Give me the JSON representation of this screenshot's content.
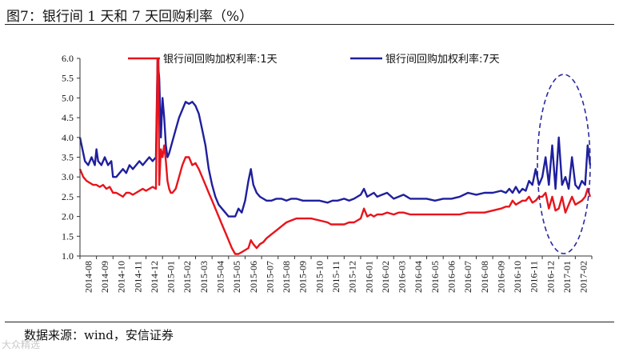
{
  "figure": {
    "title": "图7：银行间 1 天和 7 天回购利率（%）",
    "source": "数据来源：wind，安信证券",
    "watermark": "大众精选"
  },
  "chart_data": {
    "type": "line",
    "xlabel": "",
    "ylabel": "",
    "ylim": [
      1.0,
      6.0
    ],
    "yticks": [
      "6.0",
      "5.5",
      "5.0",
      "4.5",
      "4.0",
      "3.5",
      "3.0",
      "2.5",
      "2.0",
      "1.5",
      "1.0"
    ],
    "categories": [
      "2014-08",
      "2014-09",
      "2014-10",
      "2014-11",
      "2014-12",
      "2015-01",
      "2015-02",
      "2015-03",
      "2015-04",
      "2015-05",
      "2015-06",
      "2015-07",
      "2015-08",
      "2015-09",
      "2015-10",
      "2015-11",
      "2015-12",
      "2016-01",
      "2016-02",
      "2016-03",
      "2016-04",
      "2016-05",
      "2016-06",
      "2016-07",
      "2016-08",
      "2016-09",
      "2016-10",
      "2016-11",
      "2016-12",
      "2017-01",
      "2017-02"
    ],
    "legend_position": "top",
    "colors": {
      "series_1d": "#e8141c",
      "series_7d": "#1f1f9e",
      "ellipse": "#2a2aa0",
      "axis": "#333333"
    },
    "series": [
      {
        "name": "银行间回购加权利率:1天",
        "points": [
          [
            0.0,
            3.2
          ],
          [
            0.2,
            3.0
          ],
          [
            0.4,
            2.9
          ],
          [
            0.6,
            2.85
          ],
          [
            0.8,
            2.8
          ],
          [
            1.0,
            2.8
          ],
          [
            1.2,
            2.75
          ],
          [
            1.4,
            2.8
          ],
          [
            1.6,
            2.7
          ],
          [
            1.8,
            2.75
          ],
          [
            2.0,
            2.6
          ],
          [
            2.2,
            2.6
          ],
          [
            2.4,
            2.55
          ],
          [
            2.6,
            2.5
          ],
          [
            2.8,
            2.6
          ],
          [
            3.0,
            2.6
          ],
          [
            3.2,
            2.55
          ],
          [
            3.4,
            2.6
          ],
          [
            3.6,
            2.65
          ],
          [
            3.8,
            2.7
          ],
          [
            4.0,
            2.65
          ],
          [
            4.2,
            2.7
          ],
          [
            4.4,
            2.75
          ],
          [
            4.6,
            2.7
          ],
          [
            4.7,
            5.98
          ],
          [
            4.75,
            5.98
          ],
          [
            4.8,
            2.8
          ],
          [
            4.9,
            3.7
          ],
          [
            5.0,
            3.5
          ],
          [
            5.1,
            3.8
          ],
          [
            5.2,
            3.4
          ],
          [
            5.3,
            2.9
          ],
          [
            5.4,
            2.7
          ],
          [
            5.5,
            2.6
          ],
          [
            5.6,
            2.6
          ],
          [
            5.8,
            2.7
          ],
          [
            6.0,
            3.0
          ],
          [
            6.2,
            3.3
          ],
          [
            6.4,
            3.5
          ],
          [
            6.6,
            3.5
          ],
          [
            6.8,
            3.3
          ],
          [
            7.0,
            3.35
          ],
          [
            7.2,
            3.2
          ],
          [
            7.4,
            3.0
          ],
          [
            7.6,
            2.8
          ],
          [
            7.8,
            2.6
          ],
          [
            8.0,
            2.4
          ],
          [
            8.2,
            2.2
          ],
          [
            8.4,
            2.0
          ],
          [
            8.6,
            1.8
          ],
          [
            8.8,
            1.6
          ],
          [
            9.0,
            1.4
          ],
          [
            9.2,
            1.2
          ],
          [
            9.4,
            1.05
          ],
          [
            9.6,
            1.05
          ],
          [
            9.8,
            1.1
          ],
          [
            10.0,
            1.15
          ],
          [
            10.2,
            1.2
          ],
          [
            10.35,
            1.4
          ],
          [
            10.5,
            1.3
          ],
          [
            10.7,
            1.2
          ],
          [
            10.9,
            1.3
          ],
          [
            11.1,
            1.35
          ],
          [
            11.3,
            1.45
          ],
          [
            11.6,
            1.55
          ],
          [
            11.9,
            1.65
          ],
          [
            12.2,
            1.75
          ],
          [
            12.5,
            1.85
          ],
          [
            12.8,
            1.9
          ],
          [
            13.1,
            1.95
          ],
          [
            13.5,
            1.95
          ],
          [
            14.0,
            1.95
          ],
          [
            14.5,
            1.9
          ],
          [
            15.0,
            1.85
          ],
          [
            15.2,
            1.8
          ],
          [
            15.5,
            1.8
          ],
          [
            16.0,
            1.8
          ],
          [
            16.3,
            1.85
          ],
          [
            16.6,
            1.85
          ],
          [
            17.0,
            1.95
          ],
          [
            17.2,
            2.2
          ],
          [
            17.4,
            2.0
          ],
          [
            17.6,
            2.05
          ],
          [
            17.8,
            2.0
          ],
          [
            18.0,
            2.05
          ],
          [
            18.3,
            2.05
          ],
          [
            18.6,
            2.1
          ],
          [
            19.0,
            2.05
          ],
          [
            19.3,
            2.1
          ],
          [
            19.6,
            2.1
          ],
          [
            20.0,
            2.05
          ],
          [
            20.5,
            2.05
          ],
          [
            21.0,
            2.05
          ],
          [
            21.5,
            2.05
          ],
          [
            22.0,
            2.05
          ],
          [
            22.5,
            2.05
          ],
          [
            23.0,
            2.05
          ],
          [
            23.5,
            2.1
          ],
          [
            24.0,
            2.1
          ],
          [
            24.5,
            2.1
          ],
          [
            25.0,
            2.15
          ],
          [
            25.5,
            2.2
          ],
          [
            25.8,
            2.25
          ],
          [
            26.0,
            2.25
          ],
          [
            26.2,
            2.4
          ],
          [
            26.4,
            2.3
          ],
          [
            26.6,
            2.35
          ],
          [
            26.8,
            2.4
          ],
          [
            27.0,
            2.4
          ],
          [
            27.2,
            2.5
          ],
          [
            27.4,
            2.35
          ],
          [
            27.6,
            2.4
          ],
          [
            27.8,
            2.5
          ],
          [
            28.0,
            2.5
          ],
          [
            28.2,
            2.6
          ],
          [
            28.4,
            2.2
          ],
          [
            28.6,
            2.5
          ],
          [
            28.8,
            2.15
          ],
          [
            29.0,
            2.2
          ],
          [
            29.2,
            2.5
          ],
          [
            29.4,
            2.1
          ],
          [
            29.6,
            2.3
          ],
          [
            29.8,
            2.5
          ],
          [
            30.0,
            2.3
          ],
          [
            30.2,
            2.35
          ],
          [
            30.4,
            2.4
          ],
          [
            30.6,
            2.5
          ],
          [
            30.75,
            2.7
          ],
          [
            30.9,
            2.5
          ]
        ]
      },
      {
        "name": "银行间回购加权利率:7天",
        "points": [
          [
            0.0,
            4.0
          ],
          [
            0.15,
            3.7
          ],
          [
            0.3,
            3.4
          ],
          [
            0.5,
            3.3
          ],
          [
            0.7,
            3.5
          ],
          [
            0.9,
            3.3
          ],
          [
            1.0,
            3.7
          ],
          [
            1.1,
            3.4
          ],
          [
            1.3,
            3.3
          ],
          [
            1.5,
            3.5
          ],
          [
            1.7,
            3.3
          ],
          [
            1.9,
            3.4
          ],
          [
            2.0,
            3.0
          ],
          [
            2.2,
            3.0
          ],
          [
            2.4,
            3.1
          ],
          [
            2.6,
            3.2
          ],
          [
            2.8,
            3.1
          ],
          [
            3.0,
            3.3
          ],
          [
            3.2,
            3.2
          ],
          [
            3.4,
            3.3
          ],
          [
            3.6,
            3.4
          ],
          [
            3.8,
            3.3
          ],
          [
            4.0,
            3.4
          ],
          [
            4.2,
            3.5
          ],
          [
            4.4,
            3.4
          ],
          [
            4.6,
            3.5
          ],
          [
            4.7,
            6.0
          ],
          [
            4.8,
            5.5
          ],
          [
            4.9,
            4.0
          ],
          [
            5.0,
            5.0
          ],
          [
            5.1,
            4.5
          ],
          [
            5.2,
            3.8
          ],
          [
            5.3,
            3.5
          ],
          [
            5.4,
            3.6
          ],
          [
            5.6,
            3.9
          ],
          [
            5.8,
            4.2
          ],
          [
            6.0,
            4.5
          ],
          [
            6.2,
            4.7
          ],
          [
            6.4,
            4.9
          ],
          [
            6.6,
            4.85
          ],
          [
            6.8,
            4.9
          ],
          [
            7.0,
            4.8
          ],
          [
            7.2,
            4.6
          ],
          [
            7.4,
            4.2
          ],
          [
            7.6,
            3.8
          ],
          [
            7.8,
            3.2
          ],
          [
            8.0,
            2.8
          ],
          [
            8.2,
            2.5
          ],
          [
            8.4,
            2.3
          ],
          [
            8.6,
            2.2
          ],
          [
            8.8,
            2.1
          ],
          [
            9.0,
            2.0
          ],
          [
            9.2,
            2.0
          ],
          [
            9.4,
            2.0
          ],
          [
            9.6,
            2.2
          ],
          [
            9.8,
            2.1
          ],
          [
            10.0,
            2.4
          ],
          [
            10.2,
            2.9
          ],
          [
            10.35,
            3.2
          ],
          [
            10.5,
            2.8
          ],
          [
            10.7,
            2.6
          ],
          [
            10.9,
            2.5
          ],
          [
            11.1,
            2.45
          ],
          [
            11.3,
            2.4
          ],
          [
            11.6,
            2.4
          ],
          [
            11.9,
            2.45
          ],
          [
            12.2,
            2.45
          ],
          [
            12.5,
            2.4
          ],
          [
            12.8,
            2.45
          ],
          [
            13.1,
            2.45
          ],
          [
            13.5,
            2.4
          ],
          [
            14.0,
            2.4
          ],
          [
            14.5,
            2.4
          ],
          [
            15.0,
            2.35
          ],
          [
            15.3,
            2.4
          ],
          [
            15.6,
            2.4
          ],
          [
            16.0,
            2.45
          ],
          [
            16.3,
            2.4
          ],
          [
            16.6,
            2.45
          ],
          [
            17.0,
            2.55
          ],
          [
            17.2,
            2.7
          ],
          [
            17.4,
            2.5
          ],
          [
            17.6,
            2.55
          ],
          [
            17.8,
            2.6
          ],
          [
            18.0,
            2.5
          ],
          [
            18.3,
            2.55
          ],
          [
            18.6,
            2.6
          ],
          [
            19.0,
            2.45
          ],
          [
            19.3,
            2.5
          ],
          [
            19.6,
            2.55
          ],
          [
            20.0,
            2.45
          ],
          [
            20.5,
            2.45
          ],
          [
            21.0,
            2.45
          ],
          [
            21.5,
            2.4
          ],
          [
            22.0,
            2.45
          ],
          [
            22.5,
            2.45
          ],
          [
            23.0,
            2.5
          ],
          [
            23.5,
            2.6
          ],
          [
            24.0,
            2.55
          ],
          [
            24.5,
            2.6
          ],
          [
            25.0,
            2.6
          ],
          [
            25.5,
            2.65
          ],
          [
            25.8,
            2.6
          ],
          [
            26.0,
            2.7
          ],
          [
            26.2,
            2.6
          ],
          [
            26.4,
            2.75
          ],
          [
            26.6,
            2.6
          ],
          [
            26.8,
            2.7
          ],
          [
            27.0,
            2.65
          ],
          [
            27.2,
            2.9
          ],
          [
            27.4,
            2.8
          ],
          [
            27.6,
            3.2
          ],
          [
            27.8,
            2.8
          ],
          [
            28.0,
            3.0
          ],
          [
            28.2,
            3.5
          ],
          [
            28.4,
            2.8
          ],
          [
            28.6,
            3.8
          ],
          [
            28.8,
            2.7
          ],
          [
            29.0,
            4.0
          ],
          [
            29.2,
            2.8
          ],
          [
            29.4,
            3.0
          ],
          [
            29.6,
            2.7
          ],
          [
            29.8,
            3.5
          ],
          [
            30.0,
            2.8
          ],
          [
            30.2,
            2.7
          ],
          [
            30.4,
            2.9
          ],
          [
            30.6,
            2.8
          ],
          [
            30.75,
            3.8
          ],
          [
            30.9,
            3.3
          ]
        ]
      }
    ]
  }
}
